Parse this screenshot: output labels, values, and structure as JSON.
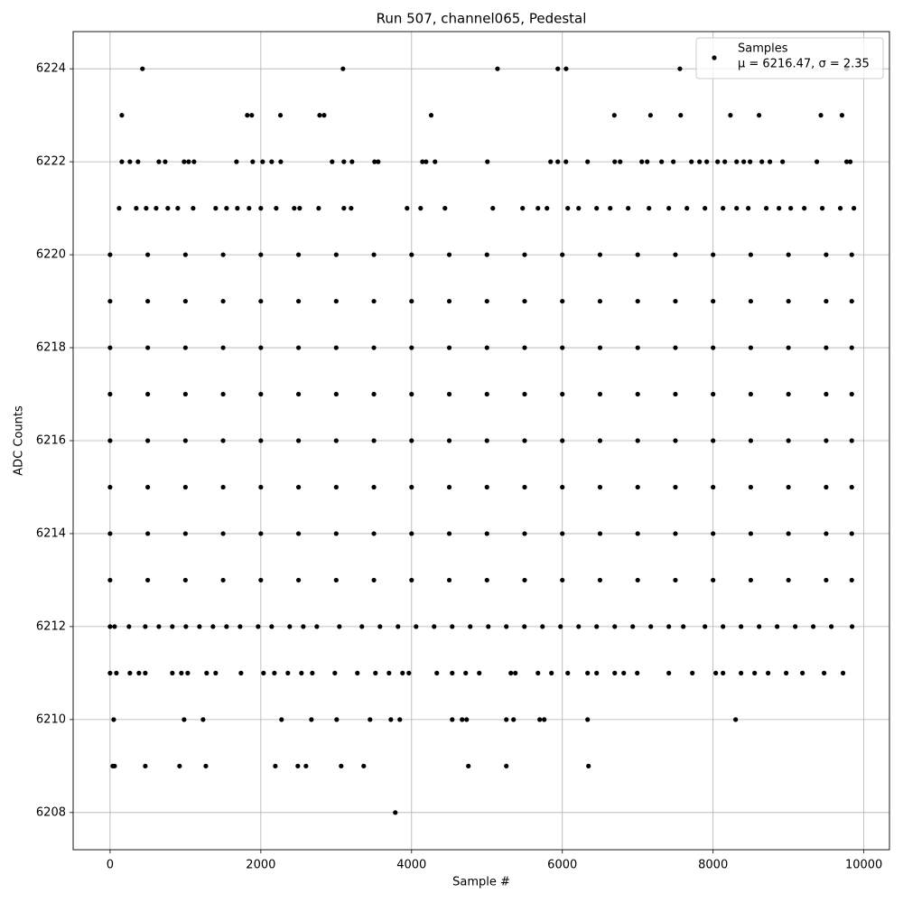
{
  "chart_data": {
    "type": "scatter",
    "title": "Run 507, channel065, Pedestal",
    "x_label": "Sample #",
    "y_label": "ADC Counts",
    "xlim": [
      -490,
      10340
    ],
    "ylim": [
      6207.2,
      6224.8
    ],
    "xticks": [
      0,
      2000,
      4000,
      6000,
      8000,
      10000
    ],
    "yticks": [
      6208,
      6210,
      6212,
      6214,
      6216,
      6218,
      6220,
      6222,
      6224
    ],
    "grid": true,
    "legend_position": "upper right",
    "legend_note": "μ = 6216.47, σ = 2.35",
    "series": [
      {
        "name": "Samples",
        "color": "#000000",
        "x": [
          430,
          3090,
          5140,
          5940,
          6050,
          7560,
          9770,
          156,
          1820,
          1880,
          2260,
          2780,
          2840,
          4260,
          6690,
          7170,
          7570,
          8230,
          8610,
          9430,
          9710,
          156,
          263,
          371,
          647,
          731,
          982,
          1042,
          1114,
          1677,
          1892,
          2024,
          2144,
          2264,
          2946,
          3102,
          3210,
          3509,
          3557,
          4144,
          4192,
          4311,
          5006,
          5844,
          5940,
          6048,
          6335,
          6695,
          6767,
          7054,
          7126,
          7317,
          7473,
          7713,
          7820,
          7916,
          8060,
          8156,
          8312,
          8407,
          8491,
          8647,
          8754,
          8922,
          9377,
          9772,
          9820,
          120,
          347,
          479,
          611,
          766,
          898,
          1102,
          1401,
          1545,
          1689,
          1844,
          2000,
          2204,
          2443,
          2515,
          2767,
          3102,
          3198,
          3940,
          4120,
          4443,
          5078,
          5473,
          5677,
          5796,
          6072,
          6216,
          6455,
          6635,
          6874,
          7150,
          7413,
          7653,
          7892,
          8132,
          8312,
          8467,
          8706,
          8874,
          9030,
          9210,
          9449,
          9688,
          9868,
          0,
          500,
          1000,
          1500,
          2000,
          2500,
          3000,
          3500,
          4000,
          4500,
          5000,
          5500,
          6000,
          6500,
          7000,
          7500,
          8000,
          8500,
          9000,
          9500,
          9840,
          0,
          500,
          1000,
          1500,
          2000,
          2500,
          3000,
          3500,
          4000,
          4500,
          5000,
          5500,
          6000,
          6500,
          7000,
          7500,
          8000,
          8500,
          9000,
          9500,
          9840,
          0,
          500,
          1000,
          1500,
          2000,
          2500,
          3000,
          3500,
          4000,
          4500,
          5000,
          5500,
          6000,
          6500,
          7000,
          7500,
          8000,
          8500,
          9000,
          9500,
          9840,
          0,
          500,
          1000,
          1500,
          2000,
          2500,
          3000,
          3500,
          4000,
          4500,
          5000,
          5500,
          6000,
          6500,
          7000,
          7500,
          8000,
          8500,
          9000,
          9500,
          9840,
          0,
          500,
          1000,
          1500,
          2000,
          2500,
          3000,
          3500,
          4000,
          4500,
          5000,
          5500,
          6000,
          6500,
          7000,
          7500,
          8000,
          8500,
          9000,
          9500,
          9840,
          0,
          500,
          1000,
          1500,
          2000,
          2500,
          3000,
          3500,
          4000,
          4500,
          5000,
          5500,
          6000,
          6500,
          7000,
          7500,
          8000,
          8500,
          9000,
          9500,
          9840,
          0,
          500,
          1000,
          1500,
          2000,
          2500,
          3000,
          3500,
          4000,
          4500,
          5000,
          5500,
          6000,
          6500,
          7000,
          7500,
          8000,
          8500,
          9000,
          9500,
          9840,
          0,
          500,
          1000,
          1500,
          2000,
          2500,
          3000,
          3500,
          4000,
          4500,
          5000,
          5500,
          6000,
          6500,
          7000,
          7500,
          8000,
          8500,
          9000,
          9500,
          9840,
          0,
          60,
          251,
          467,
          647,
          826,
          1006,
          1186,
          1365,
          1545,
          1725,
          1964,
          2144,
          2383,
          2563,
          2743,
          3042,
          3341,
          3581,
          3820,
          4060,
          4299,
          4539,
          4778,
          5018,
          5257,
          5497,
          5737,
          5976,
          6216,
          6455,
          6695,
          6934,
          7174,
          7413,
          7605,
          7892,
          8132,
          8371,
          8611,
          8850,
          9090,
          9329,
          9569,
          9844,
          0,
          84,
          263,
          383,
          467,
          826,
          946,
          1030,
          1281,
          1401,
          1737,
          2036,
          2180,
          2359,
          2539,
          2683,
          2982,
          3281,
          3521,
          3701,
          3880,
          3964,
          4335,
          4539,
          4718,
          4898,
          5317,
          5377,
          5677,
          5856,
          6072,
          6335,
          6455,
          6695,
          6815,
          6994,
          7413,
          7725,
          8036,
          8132,
          8371,
          8551,
          8730,
          8970,
          9186,
          9473,
          9724,
          48,
          982,
          1234,
          2275,
          2671,
          3006,
          3449,
          3725,
          3844,
          4539,
          4670,
          4730,
          5257,
          5353,
          5700,
          5760,
          6335,
          8299,
          36,
          60,
          467,
          922,
          1270,
          2192,
          2491,
          2599,
          3066,
          3365,
          4754,
          5257,
          6347,
          3784
        ],
        "values": [
          6224,
          6224,
          6224,
          6224,
          6224,
          6224,
          6224,
          6223,
          6223,
          6223,
          6223,
          6223,
          6223,
          6223,
          6223,
          6223,
          6223,
          6223,
          6223,
          6223,
          6223,
          6222,
          6222,
          6222,
          6222,
          6222,
          6222,
          6222,
          6222,
          6222,
          6222,
          6222,
          6222,
          6222,
          6222,
          6222,
          6222,
          6222,
          6222,
          6222,
          6222,
          6222,
          6222,
          6222,
          6222,
          6222,
          6222,
          6222,
          6222,
          6222,
          6222,
          6222,
          6222,
          6222,
          6222,
          6222,
          6222,
          6222,
          6222,
          6222,
          6222,
          6222,
          6222,
          6222,
          6222,
          6222,
          6222,
          6221,
          6221,
          6221,
          6221,
          6221,
          6221,
          6221,
          6221,
          6221,
          6221,
          6221,
          6221,
          6221,
          6221,
          6221,
          6221,
          6221,
          6221,
          6221,
          6221,
          6221,
          6221,
          6221,
          6221,
          6221,
          6221,
          6221,
          6221,
          6221,
          6221,
          6221,
          6221,
          6221,
          6221,
          6221,
          6221,
          6221,
          6221,
          6221,
          6221,
          6221,
          6221,
          6221,
          6221,
          6220,
          6220,
          6220,
          6220,
          6220,
          6220,
          6220,
          6220,
          6220,
          6220,
          6220,
          6220,
          6220,
          6220,
          6220,
          6220,
          6220,
          6220,
          6220,
          6220,
          6220,
          6219,
          6219,
          6219,
          6219,
          6219,
          6219,
          6219,
          6219,
          6219,
          6219,
          6219,
          6219,
          6219,
          6219,
          6219,
          6219,
          6219,
          6219,
          6219,
          6219,
          6219,
          6218,
          6218,
          6218,
          6218,
          6218,
          6218,
          6218,
          6218,
          6218,
          6218,
          6218,
          6218,
          6218,
          6218,
          6218,
          6218,
          6218,
          6218,
          6218,
          6218,
          6218,
          6217,
          6217,
          6217,
          6217,
          6217,
          6217,
          6217,
          6217,
          6217,
          6217,
          6217,
          6217,
          6217,
          6217,
          6217,
          6217,
          6217,
          6217,
          6217,
          6217,
          6217,
          6216,
          6216,
          6216,
          6216,
          6216,
          6216,
          6216,
          6216,
          6216,
          6216,
          6216,
          6216,
          6216,
          6216,
          6216,
          6216,
          6216,
          6216,
          6216,
          6216,
          6216,
          6215,
          6215,
          6215,
          6215,
          6215,
          6215,
          6215,
          6215,
          6215,
          6215,
          6215,
          6215,
          6215,
          6215,
          6215,
          6215,
          6215,
          6215,
          6215,
          6215,
          6215,
          6214,
          6214,
          6214,
          6214,
          6214,
          6214,
          6214,
          6214,
          6214,
          6214,
          6214,
          6214,
          6214,
          6214,
          6214,
          6214,
          6214,
          6214,
          6214,
          6214,
          6214,
          6213,
          6213,
          6213,
          6213,
          6213,
          6213,
          6213,
          6213,
          6213,
          6213,
          6213,
          6213,
          6213,
          6213,
          6213,
          6213,
          6213,
          6213,
          6213,
          6213,
          6213,
          6212,
          6212,
          6212,
          6212,
          6212,
          6212,
          6212,
          6212,
          6212,
          6212,
          6212,
          6212,
          6212,
          6212,
          6212,
          6212,
          6212,
          6212,
          6212,
          6212,
          6212,
          6212,
          6212,
          6212,
          6212,
          6212,
          6212,
          6212,
          6212,
          6212,
          6212,
          6212,
          6212,
          6212,
          6212,
          6212,
          6212,
          6212,
          6212,
          6212,
          6212,
          6212,
          6212,
          6212,
          6212,
          6211,
          6211,
          6211,
          6211,
          6211,
          6211,
          6211,
          6211,
          6211,
          6211,
          6211,
          6211,
          6211,
          6211,
          6211,
          6211,
          6211,
          6211,
          6211,
          6211,
          6211,
          6211,
          6211,
          6211,
          6211,
          6211,
          6211,
          6211,
          6211,
          6211,
          6211,
          6211,
          6211,
          6211,
          6211,
          6211,
          6211,
          6211,
          6211,
          6211,
          6211,
          6211,
          6211,
          6211,
          6211,
          6211,
          6211,
          6210,
          6210,
          6210,
          6210,
          6210,
          6210,
          6210,
          6210,
          6210,
          6210,
          6210,
          6210,
          6210,
          6210,
          6210,
          6210,
          6210,
          6210,
          6209,
          6209,
          6209,
          6209,
          6209,
          6209,
          6209,
          6209,
          6209,
          6209,
          6209,
          6209,
          6209,
          6208
        ]
      }
    ]
  }
}
